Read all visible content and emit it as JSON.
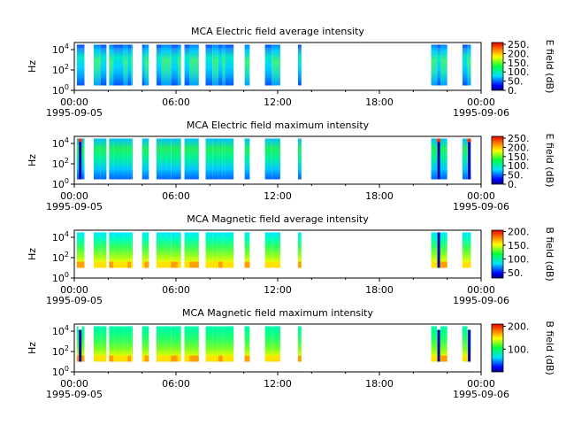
{
  "chart_data": [
    {
      "type": "heatmap",
      "title": "MCA  Electric field average intensity",
      "ylabel": "Hz",
      "yscale": "log",
      "ylim": [
        1,
        50000
      ],
      "yticks": [
        "10^0",
        "10^2",
        "10^4"
      ],
      "xlim": [
        "1995-09-05 00:00",
        "1995-09-06 00:00"
      ],
      "xticks": [
        "00:00",
        "06:00",
        "12:00",
        "18:00",
        "00:00"
      ],
      "xdates": [
        "1995-09-05",
        "1995-09-06"
      ],
      "colorbar": {
        "label": "E field (dB)",
        "ticks": [
          "0.",
          "50.",
          "100.",
          "150.",
          "200.",
          "250."
        ],
        "range": [
          0,
          260
        ],
        "palette": "rainbow"
      },
      "segments_hours": [
        [
          0.15,
          0.6
        ],
        [
          1.15,
          1.55
        ],
        [
          1.55,
          1.9
        ],
        [
          2.05,
          2.3
        ],
        [
          2.3,
          2.9
        ],
        [
          2.9,
          3.15
        ],
        [
          3.15,
          3.35
        ],
        [
          3.35,
          3.45
        ],
        [
          4.0,
          4.15
        ],
        [
          4.15,
          4.4
        ],
        [
          4.85,
          5.15
        ],
        [
          5.15,
          5.7
        ],
        [
          5.7,
          6.1
        ],
        [
          6.1,
          6.3
        ],
        [
          6.5,
          6.8
        ],
        [
          6.8,
          7.35
        ],
        [
          7.75,
          8.15
        ],
        [
          8.15,
          8.5
        ],
        [
          8.5,
          8.75
        ],
        [
          8.75,
          8.9
        ],
        [
          8.9,
          9.4
        ],
        [
          10.05,
          10.35
        ],
        [
          11.25,
          11.65
        ],
        [
          11.65,
          12.15
        ],
        [
          13.2,
          13.4
        ],
        [
          21.05,
          21.4
        ],
        [
          21.4,
          21.6
        ],
        [
          21.6,
          22.0
        ],
        [
          22.9,
          23.2
        ],
        [
          23.2,
          23.4
        ]
      ],
      "spikes_hours": []
    },
    {
      "type": "heatmap",
      "title": "MCA  Electric field maximum intensity",
      "ylabel": "Hz",
      "yscale": "log",
      "ylim": [
        1,
        50000
      ],
      "yticks": [
        "10^0",
        "10^2",
        "10^4"
      ],
      "xlim": [
        "1995-09-05 00:00",
        "1995-09-06 00:00"
      ],
      "xticks": [
        "00:00",
        "06:00",
        "12:00",
        "18:00",
        "00:00"
      ],
      "xdates": [
        "1995-09-05",
        "1995-09-06"
      ],
      "colorbar": {
        "label": "E field (dB)",
        "ticks": [
          "0.",
          "50.",
          "100.",
          "150.",
          "200.",
          "250."
        ],
        "range": [
          0,
          260
        ],
        "palette": "rainbow"
      },
      "segments_hours": [
        [
          0.15,
          0.6
        ],
        [
          1.15,
          1.55
        ],
        [
          1.55,
          1.9
        ],
        [
          2.05,
          2.3
        ],
        [
          2.3,
          2.9
        ],
        [
          2.9,
          3.15
        ],
        [
          3.15,
          3.35
        ],
        [
          3.35,
          3.45
        ],
        [
          4.0,
          4.15
        ],
        [
          4.15,
          4.4
        ],
        [
          4.85,
          5.15
        ],
        [
          5.15,
          5.7
        ],
        [
          5.7,
          6.1
        ],
        [
          6.1,
          6.3
        ],
        [
          6.5,
          6.8
        ],
        [
          6.8,
          7.35
        ],
        [
          7.75,
          8.15
        ],
        [
          8.15,
          8.5
        ],
        [
          8.5,
          8.75
        ],
        [
          8.75,
          8.9
        ],
        [
          8.9,
          9.4
        ],
        [
          10.05,
          10.35
        ],
        [
          11.25,
          11.65
        ],
        [
          11.65,
          12.15
        ],
        [
          13.2,
          13.4
        ],
        [
          21.05,
          21.4
        ],
        [
          21.4,
          21.6
        ],
        [
          21.6,
          22.0
        ],
        [
          22.9,
          23.2
        ],
        [
          23.2,
          23.4
        ]
      ],
      "spikes_hours": [
        0.35,
        21.5,
        23.3
      ]
    },
    {
      "type": "heatmap",
      "title": "MCA  Magnetic field average intensity",
      "ylabel": "Hz",
      "yscale": "log",
      "ylim": [
        1,
        50000
      ],
      "yticks": [
        "10^0",
        "10^2",
        "10^4"
      ],
      "xlim": [
        "1995-09-05 00:00",
        "1995-09-06 00:00"
      ],
      "xticks": [
        "00:00",
        "06:00",
        "12:00",
        "18:00",
        "00:00"
      ],
      "xdates": [
        "1995-09-05",
        "1995-09-06"
      ],
      "colorbar": {
        "label": "B field (dB)",
        "ticks": [
          "50.",
          "100.",
          "150.",
          "200."
        ],
        "range": [
          30,
          205
        ],
        "palette": "rainbow"
      },
      "segments_hours": [
        [
          0.15,
          0.6
        ],
        [
          1.15,
          1.55
        ],
        [
          1.55,
          1.9
        ],
        [
          2.05,
          2.3
        ],
        [
          2.3,
          2.9
        ],
        [
          2.9,
          3.15
        ],
        [
          3.15,
          3.35
        ],
        [
          3.35,
          3.45
        ],
        [
          4.0,
          4.15
        ],
        [
          4.15,
          4.4
        ],
        [
          4.85,
          5.15
        ],
        [
          5.15,
          5.7
        ],
        [
          5.7,
          6.1
        ],
        [
          6.1,
          6.3
        ],
        [
          6.5,
          6.8
        ],
        [
          6.8,
          7.35
        ],
        [
          7.75,
          8.15
        ],
        [
          8.15,
          8.5
        ],
        [
          8.5,
          8.75
        ],
        [
          8.75,
          8.9
        ],
        [
          8.9,
          9.4
        ],
        [
          10.05,
          10.35
        ],
        [
          11.25,
          11.65
        ],
        [
          11.65,
          12.15
        ],
        [
          13.2,
          13.4
        ],
        [
          21.05,
          21.4
        ],
        [
          21.4,
          21.6
        ],
        [
          21.6,
          22.0
        ],
        [
          22.9,
          23.2
        ],
        [
          23.2,
          23.4
        ]
      ],
      "spikes_hours": [
        21.5
      ]
    },
    {
      "type": "heatmap",
      "title": "MCA  Magnetic field maximum intensity",
      "ylabel": "Hz",
      "yscale": "log",
      "ylim": [
        1,
        50000
      ],
      "yticks": [
        "10^0",
        "10^2",
        "10^4"
      ],
      "xlim": [
        "1995-09-05 00:00",
        "1995-09-06 00:00"
      ],
      "xticks": [
        "00:00",
        "06:00",
        "12:00",
        "18:00",
        "00:00"
      ],
      "xdates": [
        "1995-09-05",
        "1995-09-06"
      ],
      "colorbar": {
        "label": "B field (dB)",
        "ticks": [
          "100.",
          "200."
        ],
        "range": [
          0,
          210
        ],
        "palette": "rainbow"
      },
      "segments_hours": [
        [
          0.15,
          0.6
        ],
        [
          1.15,
          1.55
        ],
        [
          1.55,
          1.9
        ],
        [
          2.05,
          2.3
        ],
        [
          2.3,
          2.9
        ],
        [
          2.9,
          3.15
        ],
        [
          3.15,
          3.35
        ],
        [
          3.35,
          3.45
        ],
        [
          4.0,
          4.15
        ],
        [
          4.15,
          4.4
        ],
        [
          4.85,
          5.15
        ],
        [
          5.15,
          5.7
        ],
        [
          5.7,
          6.1
        ],
        [
          6.1,
          6.3
        ],
        [
          6.5,
          6.8
        ],
        [
          6.8,
          7.35
        ],
        [
          7.75,
          8.15
        ],
        [
          8.15,
          8.5
        ],
        [
          8.5,
          8.75
        ],
        [
          8.75,
          8.9
        ],
        [
          8.9,
          9.4
        ],
        [
          10.05,
          10.35
        ],
        [
          11.25,
          11.65
        ],
        [
          11.65,
          12.15
        ],
        [
          13.2,
          13.4
        ],
        [
          21.05,
          21.4
        ],
        [
          21.4,
          21.6
        ],
        [
          21.6,
          22.0
        ],
        [
          22.9,
          23.2
        ],
        [
          23.2,
          23.4
        ]
      ],
      "spikes_hours": [
        0.35,
        21.5,
        23.3
      ]
    }
  ]
}
